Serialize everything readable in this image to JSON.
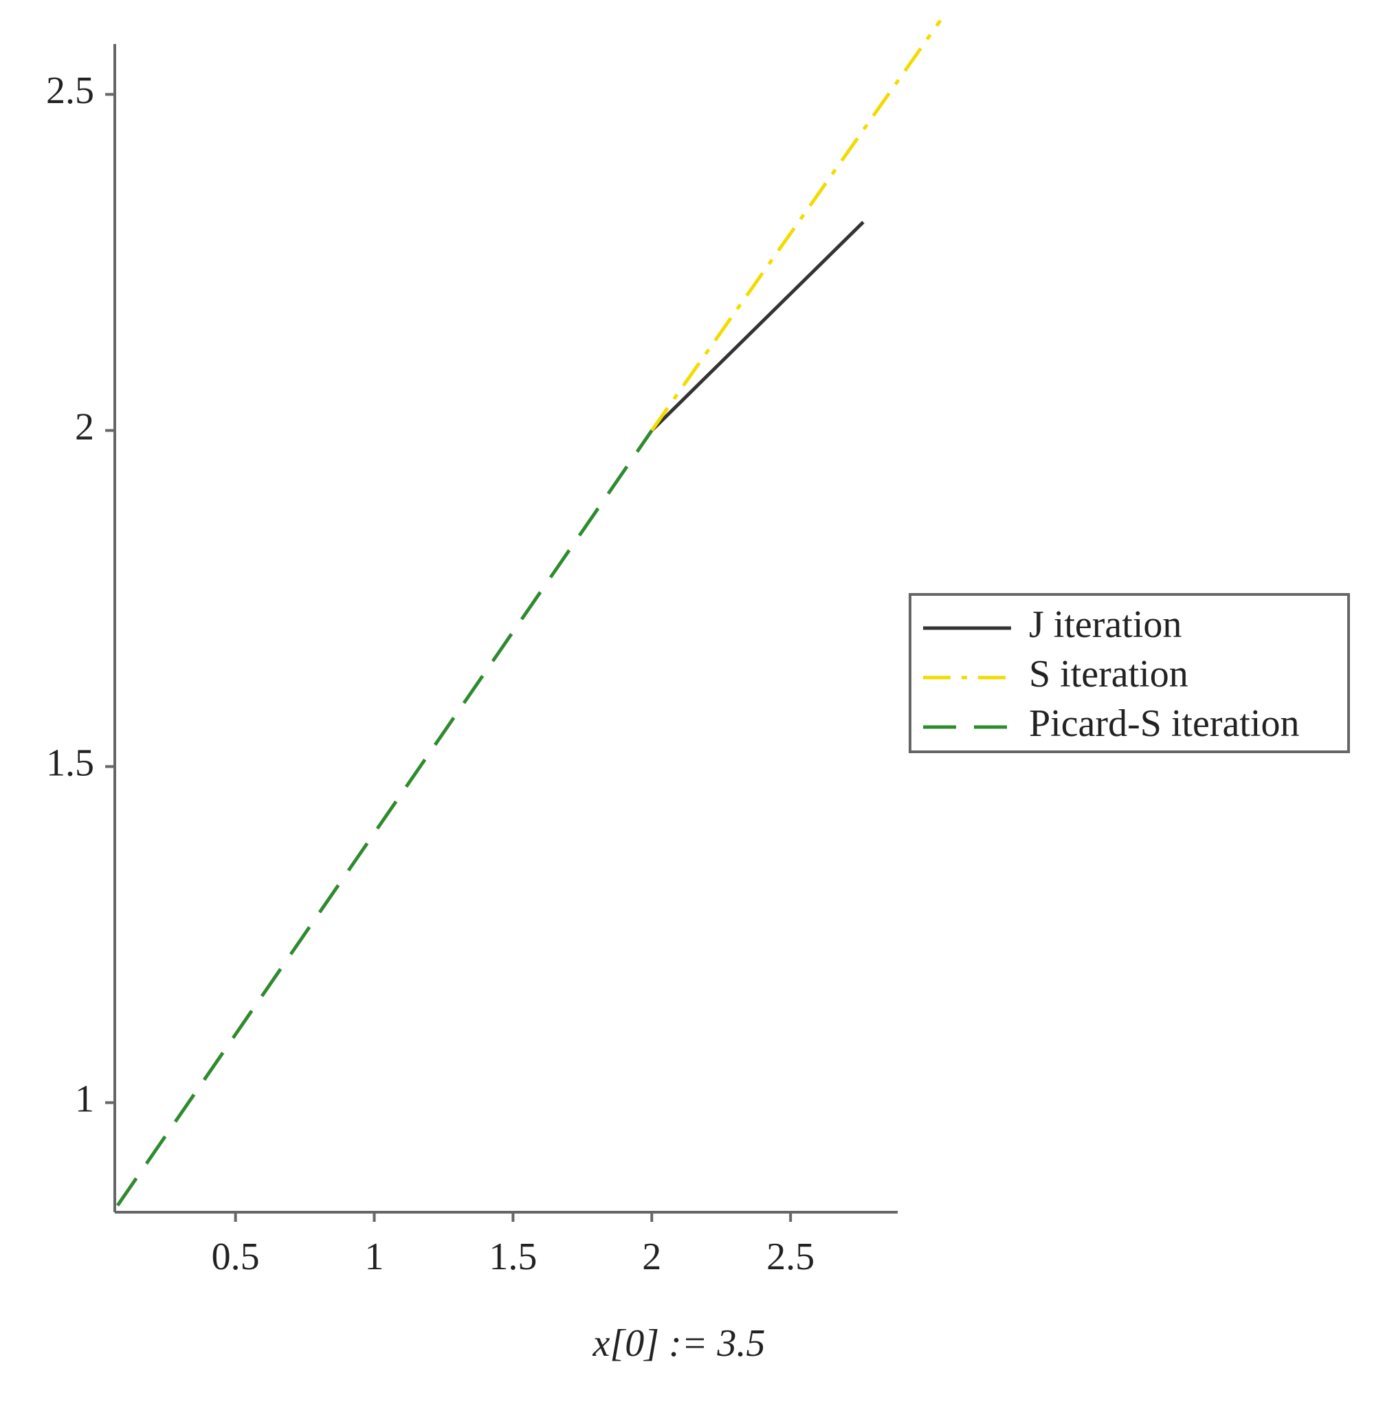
{
  "chart_data": {
    "type": "line",
    "xlabel": "x[0] := 3.5",
    "xlim": [
      0.065,
      2.886
    ],
    "ylim": [
      0.837,
      2.575
    ],
    "xticks": [
      0.5,
      1,
      1.5,
      2,
      2.5
    ],
    "yticks": [
      1,
      1.5,
      2,
      2.5
    ],
    "legend": "right",
    "series": [
      {
        "name": "J iteration",
        "color": "#333333",
        "dash": "solid",
        "x": [
          2.0,
          2.762
        ],
        "values": [
          2.0,
          2.31
        ]
      },
      {
        "name": "S iteration",
        "color": "#f2dc00",
        "dash": "dashdot",
        "x": [
          2.0,
          3.04
        ],
        "values": [
          2.0,
          2.61
        ]
      },
      {
        "name": "Picard-S iteration",
        "color": "#2e8b2e",
        "dash": "dash",
        "x": [
          0.075,
          2.0
        ],
        "values": [
          0.847,
          2.0
        ]
      }
    ]
  }
}
